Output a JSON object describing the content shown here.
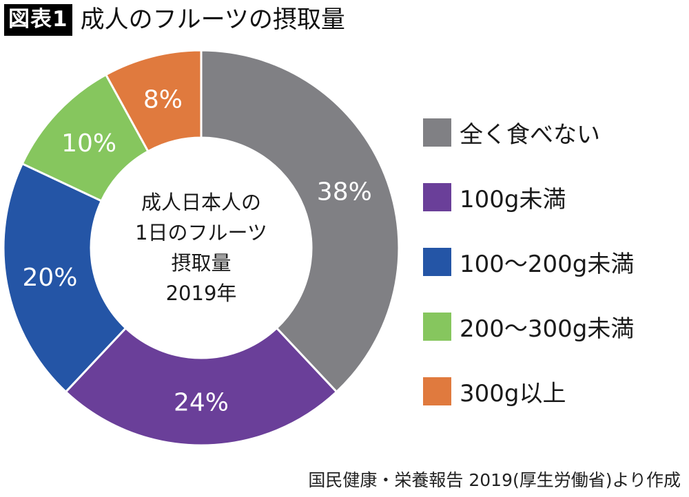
{
  "header": {
    "badge": "図表1",
    "title": "成人のフルーツの摂取量"
  },
  "chart_data": {
    "type": "pie",
    "variant": "donut",
    "title": "成人のフルーツの摂取量",
    "center_label": [
      "成人日本人の",
      "1日のフルーツ",
      "摂取量",
      "2019年"
    ],
    "start": "12 o'clock",
    "direction": "clockwise",
    "unit": "%",
    "categories": [
      "全く食べない",
      "100g未満",
      "100〜200g未満",
      "200〜300g未満",
      "300g以上"
    ],
    "values": [
      38,
      24,
      20,
      10,
      8
    ],
    "labels": [
      "38%",
      "24%",
      "20%",
      "10%",
      "8%"
    ],
    "colors": [
      "#808084",
      "#6a3f99",
      "#2455a6",
      "#86c65e",
      "#e07a3e"
    ],
    "legend_position": "right"
  },
  "footer": {
    "source": "国民健康・栄養報告 2019(厚生労働省)より作成"
  }
}
